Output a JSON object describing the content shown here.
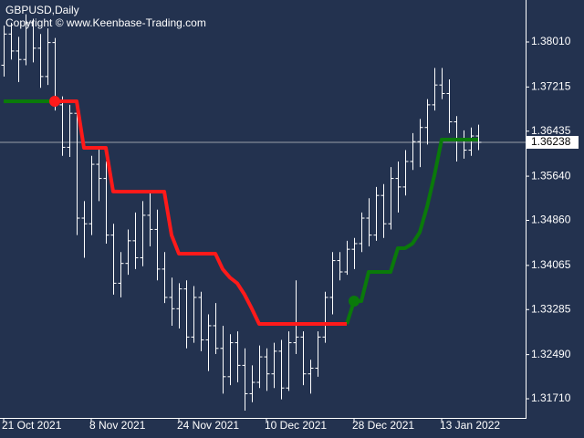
{
  "chart_data": {
    "type": "ohlc",
    "title": "GBPUSD,Daily",
    "subtitle": "Copyright © www.Keenbase-Trading.com",
    "categories": [
      "21 Oct 2021",
      null,
      null,
      null,
      null,
      null,
      null,
      null,
      null,
      null,
      null,
      null,
      "8 Nov 2021",
      null,
      null,
      null,
      null,
      null,
      null,
      null,
      null,
      null,
      null,
      null,
      "24 Nov 2021",
      null,
      null,
      null,
      null,
      null,
      null,
      null,
      null,
      null,
      null,
      null,
      "10 Dec 2021",
      null,
      null,
      null,
      null,
      null,
      null,
      null,
      null,
      null,
      null,
      null,
      "28 Dec 2021",
      null,
      null,
      null,
      null,
      null,
      null,
      null,
      null,
      null,
      null,
      null,
      "13 Jan 2022",
      null,
      null,
      null,
      null,
      null
    ],
    "open": [
      1.376,
      1.3815,
      1.3785,
      1.377,
      1.3835,
      1.379,
      1.374,
      1.38,
      1.369,
      1.3615,
      1.3675,
      1.349,
      1.348,
      1.3585,
      1.356,
      1.346,
      1.3375,
      1.341,
      1.345,
      1.342,
      1.3495,
      1.347,
      1.34,
      1.335,
      1.333,
      1.3365,
      1.328,
      1.335,
      1.3275,
      1.33,
      1.326,
      1.321,
      1.327,
      1.323,
      1.318,
      1.32,
      1.3245,
      1.3215,
      1.3255,
      1.319,
      1.327,
      1.328,
      1.3215,
      1.3225,
      1.328,
      1.335,
      1.3415,
      1.3395,
      1.3435,
      1.3445,
      1.349,
      1.346,
      1.353,
      1.348,
      1.356,
      1.3545,
      1.359,
      1.3625,
      1.365,
      1.369,
      1.3725,
      1.371,
      1.366,
      1.363,
      1.361,
      1.3635
    ],
    "high": [
      1.383,
      1.3835,
      1.381,
      1.385,
      1.3842,
      1.3815,
      1.3825,
      1.3808,
      1.3705,
      1.369,
      1.368,
      1.352,
      1.36,
      1.3615,
      1.359,
      1.348,
      1.343,
      1.347,
      1.35,
      1.352,
      1.354,
      1.3505,
      1.343,
      1.3385,
      1.3375,
      1.338,
      1.337,
      1.336,
      1.332,
      1.334,
      1.33,
      1.3285,
      1.329,
      1.326,
      1.323,
      1.3265,
      1.326,
      1.327,
      1.3275,
      1.329,
      1.338,
      1.329,
      1.324,
      1.329,
      1.336,
      1.343,
      1.343,
      1.345,
      1.3455,
      1.35,
      1.3525,
      1.3545,
      1.355,
      1.358,
      1.359,
      1.361,
      1.364,
      1.3665,
      1.37,
      1.3755,
      1.3755,
      1.3735,
      1.367,
      1.3645,
      1.365,
      1.3655
    ],
    "low": [
      1.374,
      1.377,
      1.373,
      1.376,
      1.3765,
      1.372,
      1.3725,
      1.368,
      1.36,
      1.3598,
      1.346,
      1.342,
      1.346,
      1.352,
      1.3445,
      1.3355,
      1.335,
      1.339,
      1.34,
      1.3405,
      1.344,
      1.338,
      1.334,
      1.33,
      1.3295,
      1.326,
      1.327,
      1.3255,
      1.322,
      1.325,
      1.318,
      1.3195,
      1.32,
      1.315,
      1.3165,
      1.319,
      1.3185,
      1.319,
      1.317,
      1.3185,
      1.325,
      1.3195,
      1.318,
      1.321,
      1.327,
      1.332,
      1.338,
      1.339,
      1.34,
      1.343,
      1.344,
      1.345,
      1.3455,
      1.347,
      1.35,
      1.353,
      1.3575,
      1.358,
      1.362,
      1.368,
      1.37,
      1.364,
      1.359,
      1.3595,
      1.36,
      1.361
    ],
    "close": [
      1.3815,
      1.3785,
      1.377,
      1.3835,
      1.379,
      1.374,
      1.38,
      1.369,
      1.3615,
      1.3675,
      1.349,
      1.348,
      1.3585,
      1.356,
      1.346,
      1.3375,
      1.341,
      1.345,
      1.342,
      1.3495,
      1.347,
      1.34,
      1.335,
      1.333,
      1.3365,
      1.328,
      1.335,
      1.3275,
      1.33,
      1.326,
      1.321,
      1.327,
      1.323,
      1.318,
      1.32,
      1.3245,
      1.3215,
      1.3255,
      1.319,
      1.327,
      1.328,
      1.3215,
      1.3225,
      1.328,
      1.335,
      1.3415,
      1.3395,
      1.3435,
      1.3445,
      1.349,
      1.346,
      1.353,
      1.348,
      1.356,
      1.3545,
      1.359,
      1.3625,
      1.365,
      1.369,
      1.3725,
      1.371,
      1.366,
      1.363,
      1.361,
      1.3635,
      1.36238
    ],
    "bar_color": "#ffffff",
    "series": [
      {
        "color": "#0a7a0a",
        "values": [
          1.36963,
          1.36963,
          1.36963,
          1.36963,
          1.36963,
          1.36963,
          1.36963,
          1.36963,
          null,
          null,
          null,
          null,
          null,
          null,
          null,
          null,
          null,
          null,
          null,
          null,
          null,
          null,
          null,
          null,
          null,
          null,
          null,
          null,
          null,
          null,
          null,
          null,
          null,
          null,
          null,
          null,
          null,
          null,
          null,
          null,
          null,
          null,
          null,
          null,
          null,
          null,
          null,
          1.33032,
          1.33435,
          1.33435,
          1.3395,
          1.3395,
          1.3395,
          1.3395,
          1.34369,
          1.34369,
          1.3445,
          1.3465,
          1.351,
          1.3565,
          1.36286,
          1.36286,
          1.36286,
          1.36286,
          1.36286,
          1.36286
        ]
      },
      {
        "color": "#ff1a1a",
        "values": [
          null,
          null,
          null,
          null,
          null,
          null,
          null,
          1.36963,
          1.36963,
          1.36963,
          1.36963,
          1.36141,
          1.36141,
          1.36141,
          1.36141,
          1.3537,
          1.35368,
          1.35368,
          1.35368,
          1.35368,
          1.35368,
          1.35368,
          1.35368,
          1.346,
          1.34273,
          1.34273,
          1.34273,
          1.34273,
          1.34273,
          1.34273,
          1.34,
          1.3385,
          1.3375,
          1.3355,
          1.333,
          1.33032,
          1.33032,
          1.33032,
          1.33032,
          1.33032,
          1.33032,
          1.33032,
          1.33032,
          1.33032,
          1.33032,
          1.33032,
          1.33032,
          1.33032,
          null,
          null,
          null,
          null,
          null,
          null,
          null,
          null,
          null,
          null,
          null,
          null,
          null,
          null,
          null,
          null,
          null,
          null
        ]
      }
    ],
    "signals": [
      {
        "index": 7,
        "value": 1.36963,
        "color": "#ff1a1a"
      },
      {
        "index": 48,
        "value": 1.33435,
        "color": "#0a7a0a"
      }
    ],
    "current_price": 1.36238,
    "ylim": [
      1.31372,
      1.38751
    ],
    "yticks": [
      {
        "value": 1.3801,
        "label": "1.38010"
      },
      1.37215,
      1.36435,
      {
        "value": 1.3564,
        "label": "1.35640"
      },
      {
        "value": 1.3486,
        "label": "1.34860"
      },
      1.34065,
      1.33285,
      {
        "value": 1.3249,
        "label": "1.32490"
      },
      {
        "value": 1.3171,
        "label": "1.31710"
      }
    ]
  }
}
